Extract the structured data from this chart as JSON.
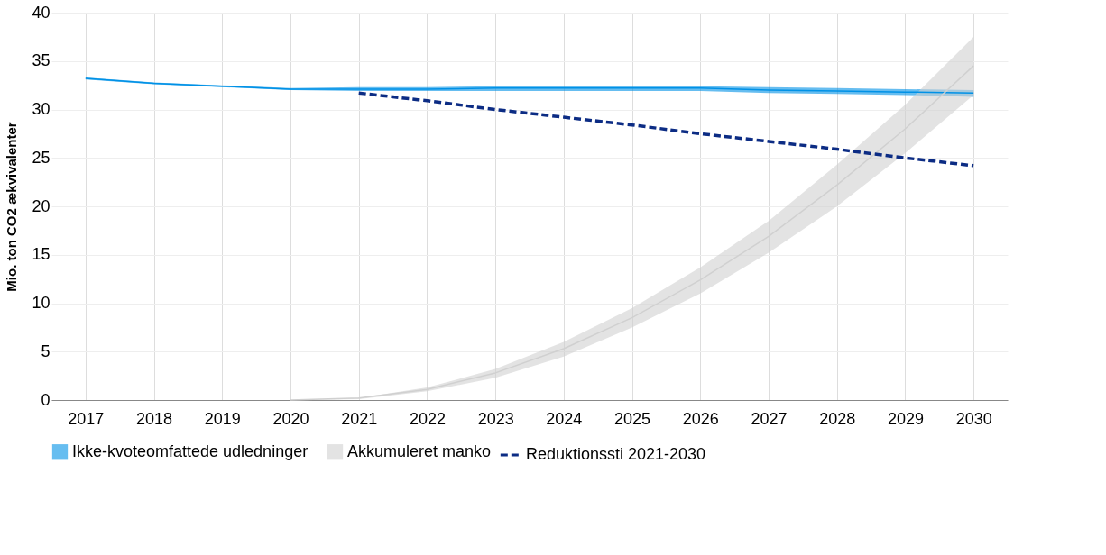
{
  "chart_data": {
    "type": "line",
    "ylabel": "Mio. ton CO2 ækvivalenter",
    "categories": [
      "2017",
      "2018",
      "2019",
      "2020",
      "2021",
      "2022",
      "2023",
      "2024",
      "2025",
      "2026",
      "2027",
      "2028",
      "2029",
      "2030"
    ],
    "series": [
      {
        "name": "Ikke-kvoteomfattede udledninger",
        "color": "#0091e6",
        "values": [
          33.2,
          32.7,
          32.4,
          32.1,
          32.1,
          32.1,
          32.2,
          32.2,
          32.2,
          32.2,
          32.0,
          31.9,
          31.8,
          31.7
        ],
        "lower": [
          33.1,
          32.6,
          32.3,
          32.0,
          31.9,
          31.9,
          31.9,
          31.9,
          31.9,
          31.9,
          31.7,
          31.6,
          31.5,
          31.3
        ],
        "upper": [
          33.3,
          32.8,
          32.5,
          32.2,
          32.3,
          32.3,
          32.4,
          32.4,
          32.4,
          32.4,
          32.3,
          32.2,
          32.1,
          32.0
        ]
      },
      {
        "name": "Akkumuleret manko",
        "color": "#d0d0d0",
        "values": [
          null,
          null,
          null,
          0,
          0.2,
          1.1,
          2.8,
          5.3,
          8.5,
          12.4,
          16.9,
          22.2,
          28.0,
          34.5
        ],
        "lower": [
          null,
          null,
          null,
          0,
          0.1,
          0.9,
          2.3,
          4.5,
          7.5,
          11.0,
          15.2,
          20.0,
          25.5,
          31.5
        ],
        "upper": [
          null,
          null,
          null,
          0,
          0.2,
          1.3,
          3.2,
          6.0,
          9.5,
          13.7,
          18.5,
          24.3,
          30.5,
          37.5
        ]
      },
      {
        "name": "Reduktionssti 2021-2030",
        "line_style": "dashed",
        "color": "#0c2c84",
        "values": [
          null,
          null,
          null,
          null,
          31.7,
          30.9,
          30.0,
          29.2,
          28.4,
          27.5,
          26.7,
          25.9,
          25.0,
          24.2
        ]
      }
    ],
    "ylim": [
      0,
      40
    ],
    "yticks": [
      0,
      5,
      10,
      15,
      20,
      25,
      30,
      35,
      40
    ],
    "grid": true,
    "legend": "bottom"
  }
}
